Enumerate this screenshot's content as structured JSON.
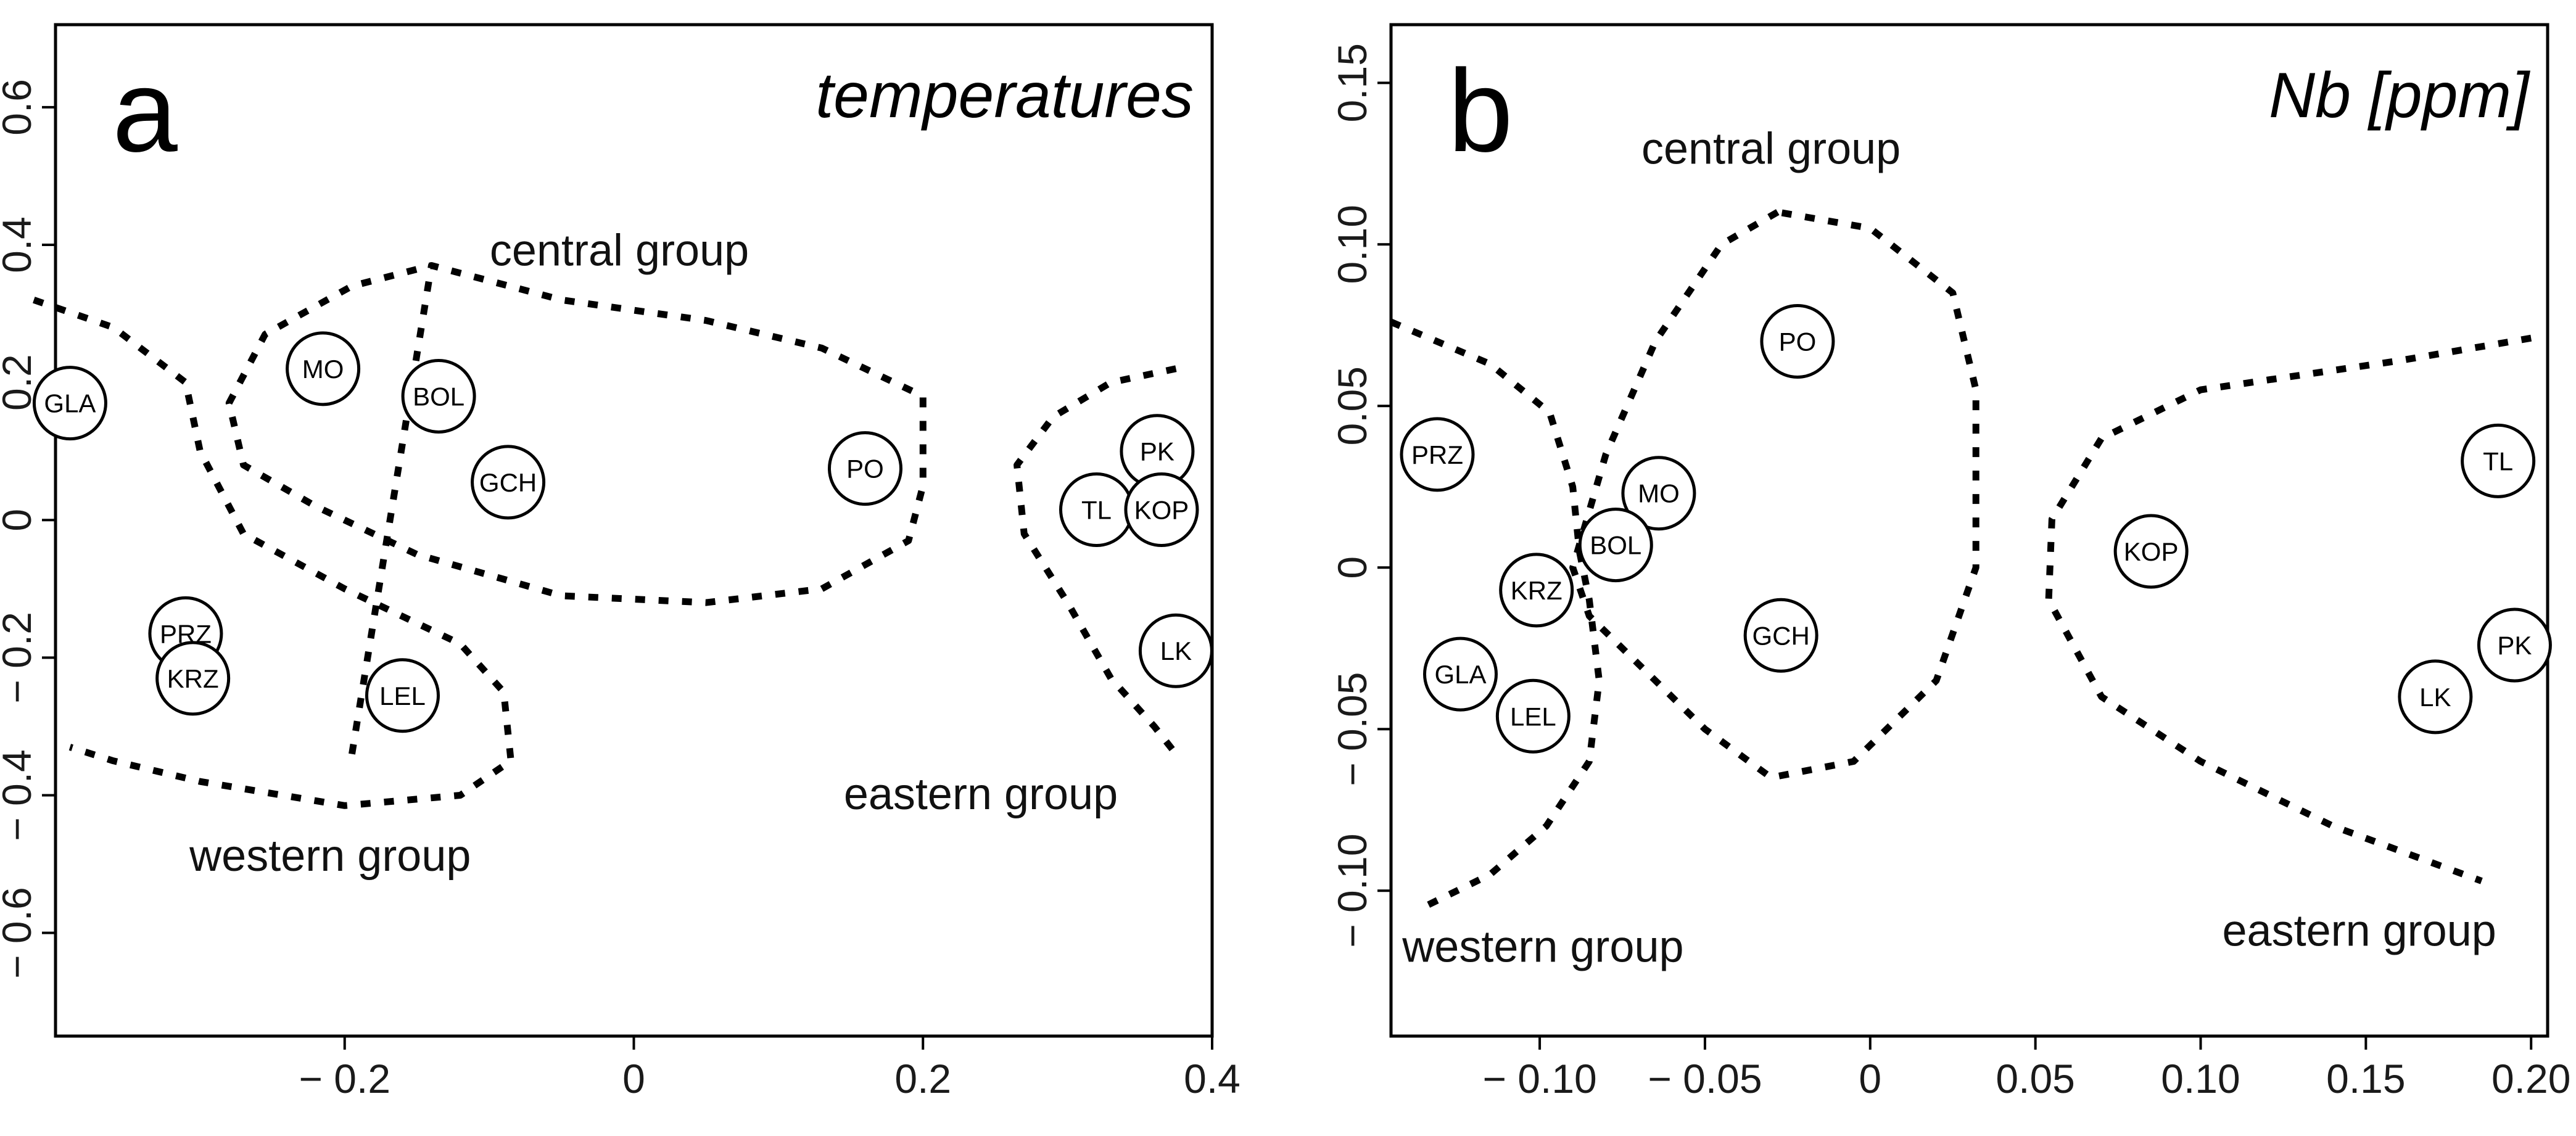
{
  "chart_data": [
    {
      "type": "scatter",
      "panel_label": "a",
      "title": "temperatures",
      "xlabel": "",
      "ylabel": "",
      "xlim": [
        -0.4,
        0.4
      ],
      "ylim": [
        -0.75,
        0.72
      ],
      "xticks": [
        -0.2,
        0,
        0.2,
        0.4
      ],
      "xtick_labels": [
        "− 0.2",
        "0",
        "0.2",
        "0.4"
      ],
      "yticks": [
        -0.6,
        -0.4,
        -0.2,
        0,
        0.2,
        0.4,
        0.6
      ],
      "ytick_labels": [
        "− 0.6",
        "− 0.4",
        "− 0.2",
        "0",
        "0.2",
        "0.4",
        "0.6"
      ],
      "points": [
        {
          "label": "GLA",
          "x": -0.39,
          "y": 0.17
        },
        {
          "label": "MO",
          "x": -0.215,
          "y": 0.22
        },
        {
          "label": "BOL",
          "x": -0.135,
          "y": 0.18
        },
        {
          "label": "GCH",
          "x": -0.087,
          "y": 0.055
        },
        {
          "label": "PO",
          "x": 0.16,
          "y": 0.075
        },
        {
          "label": "PK",
          "x": 0.362,
          "y": 0.1
        },
        {
          "label": "TL",
          "x": 0.32,
          "y": 0.015
        },
        {
          "label": "KOP",
          "x": 0.365,
          "y": 0.015
        },
        {
          "label": "LK",
          "x": 0.375,
          "y": -0.19
        },
        {
          "label": "PRZ",
          "x": -0.31,
          "y": -0.165
        },
        {
          "label": "KRZ",
          "x": -0.305,
          "y": -0.23
        },
        {
          "label": "LEL",
          "x": -0.16,
          "y": -0.255
        }
      ],
      "group_labels": [
        {
          "text": "central group",
          "x": -0.01,
          "y": 0.37
        },
        {
          "text": "eastern group",
          "x": 0.24,
          "y": -0.42
        },
        {
          "text": "western group",
          "x": -0.21,
          "y": -0.51
        }
      ],
      "boundaries": [
        [
          [
            -0.415,
            0.32
          ],
          [
            -0.36,
            0.28
          ],
          [
            -0.31,
            0.2
          ],
          [
            -0.3,
            0.1
          ],
          [
            -0.27,
            -0.02
          ],
          [
            -0.2,
            -0.1
          ],
          [
            -0.12,
            -0.18
          ],
          [
            -0.09,
            -0.25
          ],
          [
            -0.085,
            -0.35
          ],
          [
            -0.12,
            -0.4
          ],
          [
            -0.2,
            -0.415
          ],
          [
            -0.3,
            -0.38
          ],
          [
            -0.36,
            -0.35
          ],
          [
            -0.39,
            -0.33
          ]
        ],
        [
          [
            -0.195,
            -0.34
          ],
          [
            -0.14,
            0.37
          ],
          [
            -0.05,
            0.32
          ],
          [
            0.05,
            0.29
          ],
          [
            0.13,
            0.25
          ],
          [
            0.2,
            0.18
          ],
          [
            0.2,
            0.05
          ],
          [
            0.19,
            -0.03
          ],
          [
            0.13,
            -0.1
          ],
          [
            0.05,
            -0.12
          ],
          [
            -0.05,
            -0.11
          ],
          [
            -0.15,
            -0.05
          ],
          [
            -0.22,
            0.02
          ],
          [
            -0.27,
            0.08
          ],
          [
            -0.28,
            0.17
          ],
          [
            -0.255,
            0.27
          ],
          [
            -0.195,
            0.34
          ],
          [
            -0.14,
            0.37
          ]
        ],
        [
          [
            0.375,
            0.22
          ],
          [
            0.33,
            0.2
          ],
          [
            0.29,
            0.15
          ],
          [
            0.265,
            0.08
          ],
          [
            0.27,
            -0.02
          ],
          [
            0.3,
            -0.12
          ],
          [
            0.33,
            -0.23
          ],
          [
            0.36,
            -0.3
          ],
          [
            0.375,
            -0.34
          ]
        ]
      ]
    },
    {
      "type": "scatter",
      "panel_label": "b",
      "title": "Nb [ppm]",
      "xlabel": "",
      "ylabel": "",
      "xlim": [
        -0.145,
        0.205
      ],
      "ylim": [
        -0.145,
        0.168
      ],
      "xticks": [
        -0.1,
        -0.05,
        0,
        0.05,
        0.1,
        0.15,
        0.2
      ],
      "xtick_labels": [
        "− 0.10",
        "− 0.05",
        "0",
        "0.05",
        "0.10",
        "0.15",
        "0.20"
      ],
      "yticks": [
        -0.1,
        -0.05,
        0,
        0.05,
        0.1,
        0.15
      ],
      "ytick_labels": [
        "− 0.10",
        "− 0.05",
        "0",
        "0.05",
        "0.10",
        "0.15"
      ],
      "points": [
        {
          "label": "PO",
          "x": -0.022,
          "y": 0.07
        },
        {
          "label": "PRZ",
          "x": -0.131,
          "y": 0.035
        },
        {
          "label": "MO",
          "x": -0.064,
          "y": 0.023
        },
        {
          "label": "BOL",
          "x": -0.077,
          "y": 0.007
        },
        {
          "label": "KRZ",
          "x": -0.101,
          "y": -0.007
        },
        {
          "label": "GCH",
          "x": -0.027,
          "y": -0.021
        },
        {
          "label": "GLA",
          "x": -0.124,
          "y": -0.033
        },
        {
          "label": "LEL",
          "x": -0.102,
          "y": -0.046
        },
        {
          "label": "KOP",
          "x": 0.085,
          "y": 0.005
        },
        {
          "label": "TL",
          "x": 0.19,
          "y": 0.033
        },
        {
          "label": "PK",
          "x": 0.195,
          "y": -0.024
        },
        {
          "label": "LK",
          "x": 0.171,
          "y": -0.04
        }
      ],
      "group_labels": [
        {
          "text": "central group",
          "x": -0.03,
          "y": 0.125
        },
        {
          "text": "eastern group",
          "x": 0.148,
          "y": -0.117
        },
        {
          "text": "western group",
          "x": -0.099,
          "y": -0.122
        }
      ],
      "boundaries": [
        [
          [
            -0.145,
            0.076
          ],
          [
            -0.115,
            0.063
          ],
          [
            -0.097,
            0.048
          ],
          [
            -0.09,
            0.025
          ],
          [
            -0.088,
            0.005
          ],
          [
            -0.085,
            -0.01
          ],
          [
            -0.082,
            -0.035
          ],
          [
            -0.085,
            -0.06
          ],
          [
            -0.098,
            -0.08
          ],
          [
            -0.115,
            -0.095
          ],
          [
            -0.135,
            -0.105
          ]
        ],
        [
          [
            -0.028,
            0.11
          ],
          [
            -0.045,
            0.1
          ],
          [
            -0.065,
            0.07
          ],
          [
            -0.08,
            0.035
          ],
          [
            -0.09,
            0.0
          ],
          [
            -0.085,
            -0.015
          ],
          [
            -0.07,
            -0.03
          ],
          [
            -0.05,
            -0.05
          ],
          [
            -0.03,
            -0.065
          ],
          [
            -0.005,
            -0.06
          ],
          [
            0.02,
            -0.035
          ],
          [
            0.032,
            0.0
          ],
          [
            0.032,
            0.055
          ],
          [
            0.025,
            0.085
          ],
          [
            0.0,
            0.105
          ],
          [
            -0.028,
            0.11
          ]
        ],
        [
          [
            0.2,
            0.071
          ],
          [
            0.16,
            0.064
          ],
          [
            0.1,
            0.055
          ],
          [
            0.07,
            0.04
          ],
          [
            0.055,
            0.015
          ],
          [
            0.054,
            -0.01
          ],
          [
            0.07,
            -0.04
          ],
          [
            0.1,
            -0.06
          ],
          [
            0.14,
            -0.08
          ],
          [
            0.185,
            -0.097
          ]
        ]
      ]
    }
  ]
}
